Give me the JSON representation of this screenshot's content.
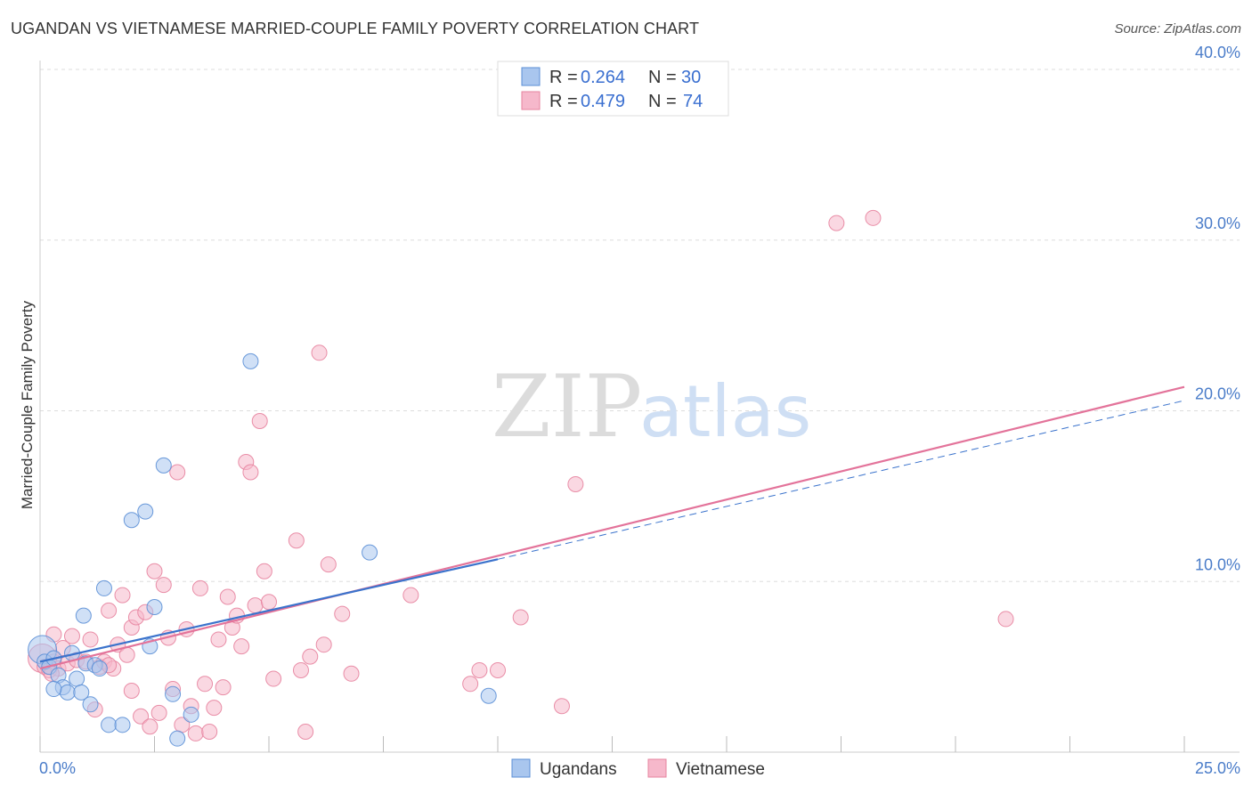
{
  "title": "UGANDAN VS VIETNAMESE MARRIED-COUPLE FAMILY POVERTY CORRELATION CHART",
  "source": "Source: ZipAtlas.com",
  "watermark": {
    "zip": "ZIP",
    "atlas": "atlas"
  },
  "colors": {
    "ugandans_fill": "#a9c6ee",
    "ugandans_stroke": "#5b8fd6",
    "ugandans_line": "#3b73cc",
    "vietnamese_fill": "#f6b8cb",
    "vietnamese_stroke": "#e7839f",
    "vietnamese_line": "#e3739a",
    "grid": "#dddddd",
    "tick_label": "#4a7cc9"
  },
  "chart_data": {
    "type": "scatter",
    "title": "UGANDAN VS VIETNAMESE MARRIED-COUPLE FAMILY POVERTY CORRELATION CHART",
    "xlabel": "",
    "ylabel": "Married-Couple Family Poverty",
    "xlim": [
      0,
      25
    ],
    "ylim": [
      0,
      40
    ],
    "x_tick_labels": [
      "0.0%",
      "25.0%"
    ],
    "y_ticks": [
      10,
      20,
      30,
      40
    ],
    "y_tick_labels": [
      "10.0%",
      "20.0%",
      "30.0%",
      "40.0%"
    ],
    "grid": true,
    "legend": {
      "position": "top-center",
      "entries": [
        {
          "r_label": "R =",
          "r": "0.264",
          "n_label": "N =",
          "n": "30"
        },
        {
          "r_label": "R =",
          "r": "0.479",
          "n_label": "N =",
          "n": "74"
        }
      ]
    },
    "bottom_legend": [
      "Ugandans",
      "Vietnamese"
    ],
    "series": [
      {
        "name": "Ugandans",
        "points": [
          [
            0.05,
            6.0
          ],
          [
            0.1,
            5.3
          ],
          [
            0.2,
            5.0
          ],
          [
            0.3,
            5.5
          ],
          [
            0.4,
            4.5
          ],
          [
            0.5,
            3.8
          ],
          [
            0.6,
            3.5
          ],
          [
            0.3,
            3.7
          ],
          [
            0.7,
            5.8
          ],
          [
            0.8,
            4.3
          ],
          [
            0.9,
            3.5
          ],
          [
            1.0,
            5.2
          ],
          [
            1.1,
            2.8
          ],
          [
            1.2,
            5.1
          ],
          [
            1.3,
            4.9
          ],
          [
            1.4,
            9.6
          ],
          [
            1.5,
            1.6
          ],
          [
            1.8,
            1.6
          ],
          [
            2.0,
            13.6
          ],
          [
            2.3,
            14.1
          ],
          [
            2.4,
            6.2
          ],
          [
            2.5,
            8.5
          ],
          [
            2.7,
            16.8
          ],
          [
            2.9,
            3.4
          ],
          [
            3.0,
            0.8
          ],
          [
            3.3,
            2.2
          ],
          [
            4.6,
            22.9
          ],
          [
            7.2,
            11.7
          ],
          [
            9.8,
            3.3
          ],
          [
            0.95,
            8.0
          ]
        ],
        "trend": {
          "x1": 0.0,
          "y1": 5.3,
          "x2": 10.0,
          "y2": 11.3
        }
      },
      {
        "name": "Vietnamese",
        "points": [
          [
            0.05,
            5.5
          ],
          [
            0.1,
            5.0
          ],
          [
            0.2,
            4.8
          ],
          [
            0.3,
            5.3
          ],
          [
            0.4,
            4.9
          ],
          [
            0.5,
            6.1
          ],
          [
            0.6,
            5.2
          ],
          [
            0.7,
            6.8
          ],
          [
            0.8,
            5.4
          ],
          [
            1.0,
            5.3
          ],
          [
            1.1,
            6.6
          ],
          [
            1.2,
            2.5
          ],
          [
            1.3,
            5.0
          ],
          [
            1.4,
            5.3
          ],
          [
            1.5,
            8.3
          ],
          [
            1.6,
            4.9
          ],
          [
            1.7,
            6.3
          ],
          [
            1.8,
            9.2
          ],
          [
            1.9,
            5.7
          ],
          [
            2.0,
            7.3
          ],
          [
            2.1,
            7.9
          ],
          [
            2.2,
            2.1
          ],
          [
            2.3,
            8.2
          ],
          [
            2.4,
            1.5
          ],
          [
            2.5,
            10.6
          ],
          [
            2.6,
            2.3
          ],
          [
            2.7,
            9.8
          ],
          [
            2.8,
            6.7
          ],
          [
            2.9,
            3.7
          ],
          [
            3.0,
            16.4
          ],
          [
            3.1,
            1.6
          ],
          [
            3.2,
            7.2
          ],
          [
            3.3,
            2.7
          ],
          [
            3.4,
            1.1
          ],
          [
            3.5,
            9.6
          ],
          [
            3.6,
            4.0
          ],
          [
            3.7,
            1.2
          ],
          [
            3.8,
            2.6
          ],
          [
            3.9,
            6.6
          ],
          [
            4.0,
            3.8
          ],
          [
            4.1,
            9.1
          ],
          [
            4.2,
            7.3
          ],
          [
            4.3,
            8.0
          ],
          [
            4.4,
            6.2
          ],
          [
            4.5,
            17.0
          ],
          [
            4.6,
            16.4
          ],
          [
            4.7,
            8.6
          ],
          [
            4.8,
            19.4
          ],
          [
            4.9,
            10.6
          ],
          [
            5.0,
            8.8
          ],
          [
            5.1,
            4.3
          ],
          [
            5.6,
            12.4
          ],
          [
            5.7,
            4.8
          ],
          [
            5.8,
            1.2
          ],
          [
            5.9,
            5.6
          ],
          [
            6.1,
            23.4
          ],
          [
            6.2,
            6.3
          ],
          [
            6.3,
            11.0
          ],
          [
            6.6,
            8.1
          ],
          [
            6.8,
            4.6
          ],
          [
            8.1,
            9.2
          ],
          [
            9.4,
            4.0
          ],
          [
            9.6,
            4.8
          ],
          [
            10.0,
            4.8
          ],
          [
            10.5,
            7.9
          ],
          [
            11.4,
            2.7
          ],
          [
            11.7,
            15.7
          ],
          [
            17.4,
            31.0
          ],
          [
            18.2,
            31.3
          ],
          [
            21.1,
            7.8
          ],
          [
            0.3,
            6.9
          ],
          [
            0.25,
            4.6
          ],
          [
            1.5,
            5.1
          ],
          [
            2.0,
            3.6
          ]
        ],
        "trend": {
          "x1": 0.0,
          "y1": 4.9,
          "x2": 25.0,
          "y2": 21.4
        }
      }
    ],
    "ugandans_dashed_extension": {
      "x1": 10.0,
      "y1": 11.3,
      "x2": 25.0,
      "y2": 20.6
    }
  }
}
